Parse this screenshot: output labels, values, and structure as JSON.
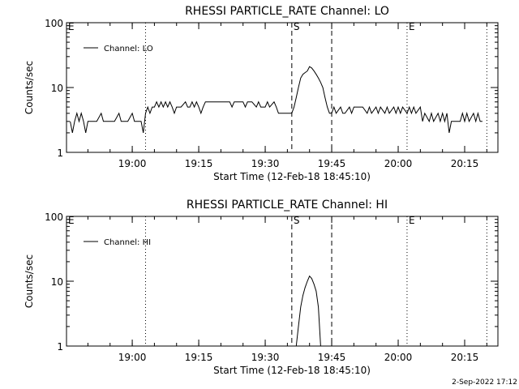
{
  "footer": {
    "timestamp": "2-Sep-2022 17:12"
  },
  "chart_data": [
    {
      "type": "line",
      "title": "RHESSI PARTICLE_RATE Channel: LO",
      "xlabel": "Start Time (12-Feb-18 18:45:10)",
      "ylabel": "Counts/sec",
      "y_scale": "log",
      "ylim": [
        1,
        100
      ],
      "y_ticks": [
        {
          "value": 1,
          "label": "1"
        },
        {
          "value": 10,
          "label": "10"
        },
        {
          "value": 100,
          "label": "100"
        }
      ],
      "xlim": [
        "18:45:10",
        "20:22:30"
      ],
      "x_ticks": [
        "19:00",
        "19:15",
        "19:30",
        "19:45",
        "20:00",
        "20:15"
      ],
      "legend": {
        "position": "top-left",
        "entries": [
          "Channel: LO"
        ]
      },
      "markers": [
        {
          "time": "18:45:10",
          "style": "dotted",
          "label": "E"
        },
        {
          "time": "19:03:00",
          "style": "dotted",
          "label": ""
        },
        {
          "time": "19:36:00",
          "style": "dashed",
          "label": "S"
        },
        {
          "time": "19:45:00",
          "style": "dashed",
          "label": ""
        },
        {
          "time": "20:02:00",
          "style": "dotted",
          "label": "E"
        },
        {
          "time": "20:20:00",
          "style": "dotted",
          "label": ""
        }
      ],
      "series": [
        {
          "name": "Channel: LO",
          "color": "#000000",
          "points": [
            [
              "18:46:00",
              3
            ],
            [
              "18:46:30",
              2
            ],
            [
              "18:47:00",
              3
            ],
            [
              "18:47:30",
              4
            ],
            [
              "18:48:00",
              3
            ],
            [
              "18:48:30",
              4
            ],
            [
              "18:49:00",
              3
            ],
            [
              "18:49:30",
              2
            ],
            [
              "18:50:00",
              3
            ],
            [
              "18:51:00",
              3
            ],
            [
              "18:52:00",
              3
            ],
            [
              "18:53:00",
              4
            ],
            [
              "18:53:30",
              3
            ],
            [
              "18:55:00",
              3
            ],
            [
              "18:56:00",
              3
            ],
            [
              "18:57:00",
              4
            ],
            [
              "18:57:30",
              3
            ],
            [
              "18:59:00",
              3
            ],
            [
              "19:00:00",
              4
            ],
            [
              "19:00:30",
              3
            ],
            [
              "19:02:00",
              3
            ],
            [
              "19:02:30",
              2
            ],
            [
              "19:03:00",
              4
            ],
            [
              "19:03:30",
              5
            ],
            [
              "19:04:00",
              4
            ],
            [
              "19:04:30",
              5
            ],
            [
              "19:05:00",
              5
            ],
            [
              "19:05:30",
              6
            ],
            [
              "19:06:00",
              5
            ],
            [
              "19:06:30",
              6
            ],
            [
              "19:07:00",
              5
            ],
            [
              "19:07:30",
              6
            ],
            [
              "19:08:00",
              5
            ],
            [
              "19:08:30",
              6
            ],
            [
              "19:09:00",
              5
            ],
            [
              "19:09:30",
              4
            ],
            [
              "19:10:00",
              5
            ],
            [
              "19:11:00",
              5
            ],
            [
              "19:12:00",
              6
            ],
            [
              "19:12:30",
              5
            ],
            [
              "19:13:00",
              5
            ],
            [
              "19:13:30",
              6
            ],
            [
              "19:14:00",
              5
            ],
            [
              "19:14:30",
              6
            ],
            [
              "19:15:00",
              5
            ],
            [
              "19:15:30",
              4
            ],
            [
              "19:16:00",
              5
            ],
            [
              "19:16:30",
              6
            ],
            [
              "19:17:00",
              6
            ],
            [
              "19:18:00",
              6
            ],
            [
              "19:19:00",
              6
            ],
            [
              "19:20:00",
              6
            ],
            [
              "19:21:00",
              6
            ],
            [
              "19:22:00",
              6
            ],
            [
              "19:22:30",
              5
            ],
            [
              "19:23:00",
              6
            ],
            [
              "19:24:00",
              6
            ],
            [
              "19:25:00",
              6
            ],
            [
              "19:25:30",
              5
            ],
            [
              "19:26:00",
              6
            ],
            [
              "19:27:00",
              6
            ],
            [
              "19:28:00",
              5
            ],
            [
              "19:28:30",
              6
            ],
            [
              "19:29:00",
              5
            ],
            [
              "19:30:00",
              5
            ],
            [
              "19:30:30",
              6
            ],
            [
              "19:31:00",
              5
            ],
            [
              "19:32:00",
              6
            ],
            [
              "19:32:30",
              5
            ],
            [
              "19:33:00",
              4
            ],
            [
              "19:34:00",
              4
            ],
            [
              "19:35:00",
              4
            ],
            [
              "19:36:00",
              4
            ],
            [
              "19:36:30",
              5
            ],
            [
              "19:37:00",
              7
            ],
            [
              "19:37:30",
              10
            ],
            [
              "19:38:00",
              14
            ],
            [
              "19:38:30",
              16
            ],
            [
              "19:39:00",
              17
            ],
            [
              "19:39:30",
              18
            ],
            [
              "19:40:00",
              21
            ],
            [
              "19:40:30",
              20
            ],
            [
              "19:41:00",
              18
            ],
            [
              "19:41:30",
              16
            ],
            [
              "19:42:00",
              14
            ],
            [
              "19:42:30",
              12
            ],
            [
              "19:43:00",
              10
            ],
            [
              "19:43:30",
              7
            ],
            [
              "19:44:00",
              5
            ],
            [
              "19:44:30",
              4
            ],
            [
              "19:45:00",
              4
            ],
            [
              "19:45:30",
              5
            ],
            [
              "19:46:00",
              4
            ],
            [
              "19:47:00",
              5
            ],
            [
              "19:47:30",
              4
            ],
            [
              "19:48:00",
              4
            ],
            [
              "19:49:00",
              5
            ],
            [
              "19:49:30",
              4
            ],
            [
              "19:50:00",
              5
            ],
            [
              "19:51:00",
              5
            ],
            [
              "19:52:00",
              5
            ],
            [
              "19:53:00",
              4
            ],
            [
              "19:53:30",
              5
            ],
            [
              "19:54:00",
              4
            ],
            [
              "19:55:00",
              5
            ],
            [
              "19:55:30",
              4
            ],
            [
              "19:56:00",
              5
            ],
            [
              "19:57:00",
              4
            ],
            [
              "19:57:30",
              5
            ],
            [
              "19:58:00",
              4
            ],
            [
              "19:59:00",
              5
            ],
            [
              "19:59:30",
              4
            ],
            [
              "20:00:00",
              5
            ],
            [
              "20:00:30",
              4
            ],
            [
              "20:01:00",
              5
            ],
            [
              "20:02:00",
              4
            ],
            [
              "20:02:30",
              5
            ],
            [
              "20:03:00",
              4
            ],
            [
              "20:03:30",
              5
            ],
            [
              "20:04:00",
              4
            ],
            [
              "20:05:00",
              5
            ],
            [
              "20:05:30",
              3
            ],
            [
              "20:06:00",
              4
            ],
            [
              "20:07:00",
              3
            ],
            [
              "20:07:30",
              4
            ],
            [
              "20:08:00",
              3
            ],
            [
              "20:09:00",
              4
            ],
            [
              "20:09:30",
              3
            ],
            [
              "20:10:00",
              4
            ],
            [
              "20:10:30",
              3
            ],
            [
              "20:11:00",
              4
            ],
            [
              "20:11:30",
              2
            ],
            [
              "20:12:00",
              3
            ],
            [
              "20:13:00",
              3
            ],
            [
              "20:14:00",
              3
            ],
            [
              "20:14:30",
              4
            ],
            [
              "20:15:00",
              3
            ],
            [
              "20:15:30",
              4
            ],
            [
              "20:16:00",
              3
            ],
            [
              "20:17:00",
              4
            ],
            [
              "20:17:30",
              3
            ],
            [
              "20:18:00",
              4
            ],
            [
              "20:18:30",
              3
            ],
            [
              "20:19:00",
              3
            ]
          ]
        }
      ]
    },
    {
      "type": "line",
      "title": "RHESSI PARTICLE_RATE Channel: HI",
      "xlabel": "Start Time (12-Feb-18 18:45:10)",
      "ylabel": "Counts/sec",
      "y_scale": "log",
      "ylim": [
        1,
        100
      ],
      "y_ticks": [
        {
          "value": 1,
          "label": "1"
        },
        {
          "value": 10,
          "label": "10"
        },
        {
          "value": 100,
          "label": "100"
        }
      ],
      "xlim": [
        "18:45:10",
        "20:22:30"
      ],
      "x_ticks": [
        "19:00",
        "19:15",
        "19:30",
        "19:45",
        "20:00",
        "20:15"
      ],
      "legend": {
        "position": "top-left",
        "entries": [
          "Channel: HI"
        ]
      },
      "markers": [
        {
          "time": "18:45:10",
          "style": "dotted",
          "label": "E"
        },
        {
          "time": "19:03:00",
          "style": "dotted",
          "label": ""
        },
        {
          "time": "19:36:00",
          "style": "dashed",
          "label": "S"
        },
        {
          "time": "19:45:00",
          "style": "dashed",
          "label": ""
        },
        {
          "time": "20:02:00",
          "style": "dotted",
          "label": "E"
        },
        {
          "time": "20:20:00",
          "style": "dotted",
          "label": ""
        }
      ],
      "series": [
        {
          "name": "Channel: HI",
          "color": "#000000",
          "points": [
            [
              "19:37:00",
              1
            ],
            [
              "19:37:30",
              2
            ],
            [
              "19:38:00",
              4
            ],
            [
              "19:38:30",
              6
            ],
            [
              "19:39:00",
              8
            ],
            [
              "19:39:30",
              10
            ],
            [
              "19:40:00",
              12
            ],
            [
              "19:40:30",
              11
            ],
            [
              "19:41:00",
              9
            ],
            [
              "19:41:30",
              7
            ],
            [
              "19:42:00",
              4
            ],
            [
              "19:42:30",
              1
            ]
          ]
        }
      ]
    }
  ]
}
